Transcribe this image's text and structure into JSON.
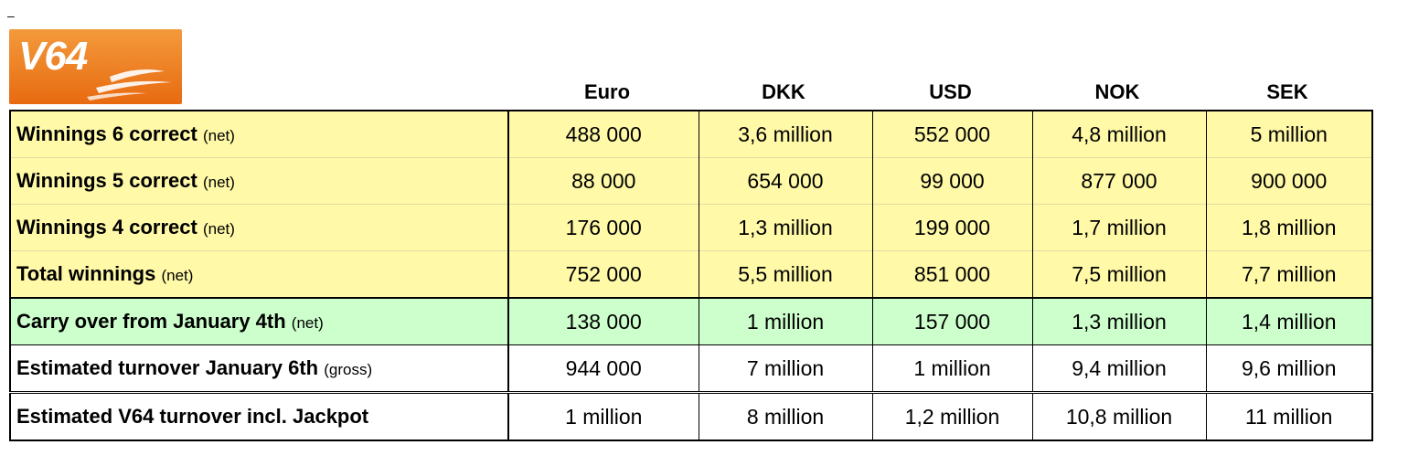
{
  "stray_mark": "–",
  "logo": {
    "text": "V64",
    "bg_color": "#f07a1e",
    "accent_color": "#ffffff"
  },
  "columns": [
    "Euro",
    "DKK",
    "USD",
    "NOK",
    "SEK"
  ],
  "rows": [
    {
      "label": "Winnings 6 correct",
      "note": "(net)",
      "style": "yellow",
      "values": [
        "488 000",
        "3,6 million",
        "552 000",
        "4,8 million",
        "5 million"
      ]
    },
    {
      "label": "Winnings 5 correct",
      "note": "(net)",
      "style": "yellow",
      "values": [
        "88 000",
        "654 000",
        "99 000",
        "877 000",
        "900 000"
      ]
    },
    {
      "label": "Winnings 4 correct",
      "note": "(net)",
      "style": "yellow",
      "values": [
        "176 000",
        "1,3 million",
        "199 000",
        "1,7 million",
        "1,8 million"
      ]
    },
    {
      "label": "Total winnings",
      "note": "(net)",
      "style": "yellow",
      "values": [
        "752 000",
        "5,5 million",
        "851 000",
        "7,5 million",
        "7,7 million"
      ]
    },
    {
      "label": "Carry over from January 4th",
      "note": "(net)",
      "style": "green",
      "values": [
        "138 000",
        "1 million",
        "157 000",
        "1,3 million",
        "1,4 million"
      ]
    },
    {
      "label": "Estimated turnover January 6th",
      "note": "(gross)",
      "style": "white",
      "values": [
        "944 000",
        "7 million",
        "1 million",
        "9,4 million",
        "9,6 million"
      ]
    },
    {
      "label": "Estimated V64 turnover incl. Jackpot",
      "note": "",
      "style": "white",
      "values": [
        "1 million",
        "8 million",
        "1,2 million",
        "10,8 million",
        "11 million"
      ]
    }
  ],
  "colors": {
    "yellow_row": "#fff9a8",
    "green_row": "#ccffcc",
    "white_row": "#ffffff"
  }
}
